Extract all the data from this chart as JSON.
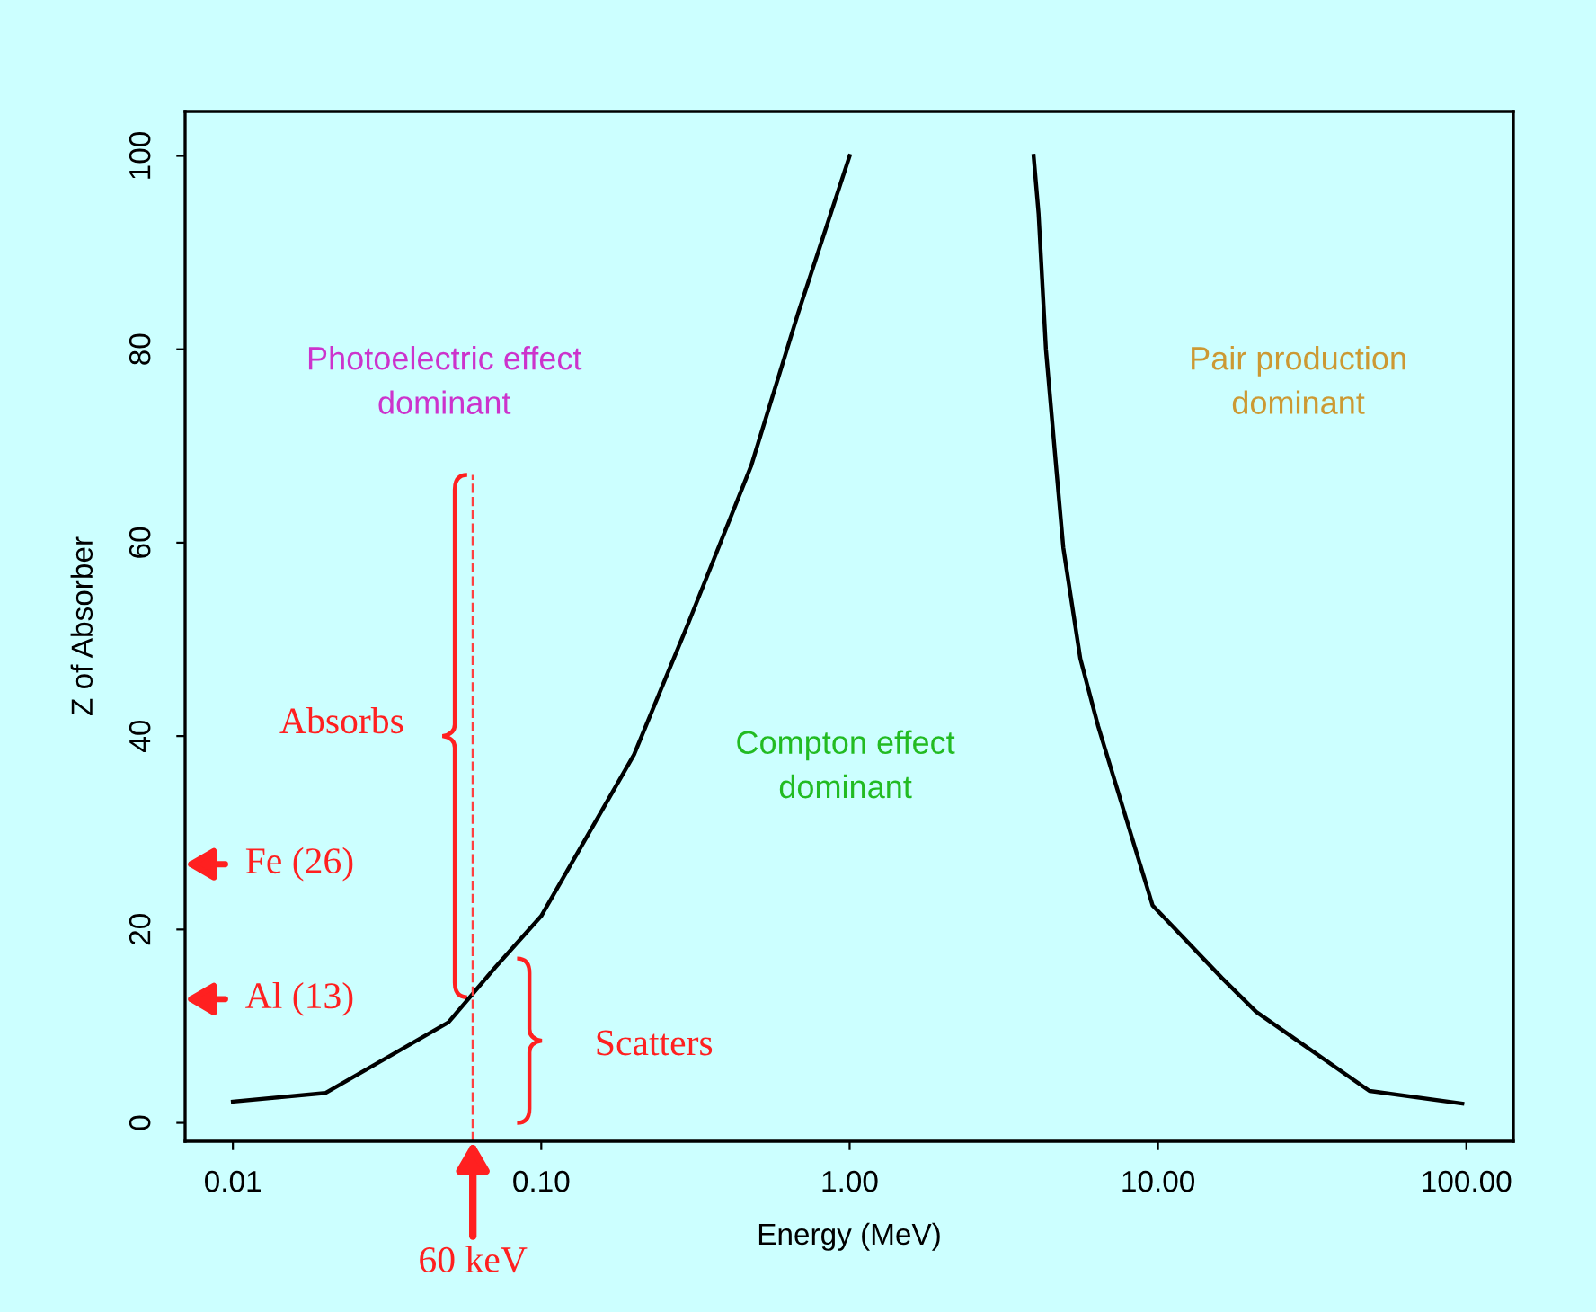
{
  "chart_data": {
    "type": "line",
    "xlabel": "Energy (MeV)",
    "ylabel": "Z of Absorber",
    "log": "x",
    "series": [
      {
        "color": "#000000",
        "x": [
          0.01,
          0.02,
          0.05,
          0.071,
          0.1,
          0.2,
          0.3,
          0.48,
          0.68,
          1.0
        ],
        "values": [
          2.2,
          3.1,
          10.4,
          16.1,
          21.4,
          38.1,
          51.7,
          68,
          83.7,
          100
        ]
      },
      {
        "color": "#000000",
        "x": [
          3.95,
          4.1,
          4.33,
          4.69,
          4.93,
          5.6,
          6.4,
          9.6,
          16.1,
          20.8,
          48.5,
          97
        ],
        "values": [
          100,
          94,
          80,
          67.3,
          59.5,
          48,
          41,
          22.5,
          15,
          11.5,
          3.3,
          2
        ]
      },
      {
        "color": "#ff4040",
        "line_style": "dashed",
        "x": [
          0.06,
          0.06
        ],
        "values": [
          -1.9,
          67
        ]
      }
    ],
    "xlim": [
      0.007,
      142
    ],
    "ylim": [
      -1.9,
      104.6
    ],
    "xticks": [
      {
        "value": 0.01,
        "label": "0.01"
      },
      {
        "value": 0.1,
        "label": "0.10"
      },
      {
        "value": 1,
        "label": "1.00"
      },
      {
        "value": 10,
        "label": "10.00"
      },
      {
        "value": 100,
        "label": "100.00"
      }
    ],
    "yticks": [
      0,
      20,
      40,
      60,
      80,
      100
    ],
    "grid": false,
    "annotations": [
      "Photoelectric effect\ndominant",
      "Compton effect\ndominant",
      "Pair production\ndominant",
      "Absorbs",
      "Scatters",
      "Fe (26)",
      "Al (13)",
      {
        "text": "60 keV",
        "x": 0.06,
        "y": -1.9
      }
    ]
  }
}
